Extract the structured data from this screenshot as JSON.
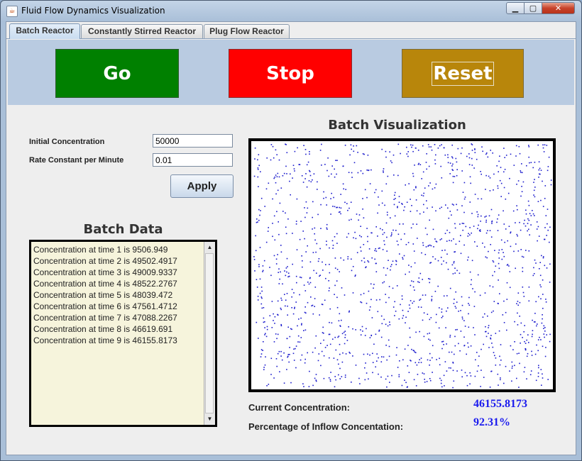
{
  "window": {
    "title": "Fluid Flow Dynamics Visualization",
    "app_icon": "java-coffee-icon",
    "controls": {
      "minimize": "▁",
      "maximize": "▢",
      "close": "✕"
    }
  },
  "tabs": [
    {
      "label": "Batch Reactor",
      "active": true
    },
    {
      "label": "Constantly Stirred Reactor",
      "active": false
    },
    {
      "label": "Plug Flow Reactor",
      "active": false
    }
  ],
  "controls": {
    "go_label": "Go",
    "stop_label": "Stop",
    "reset_label": "Reset",
    "go_color": "#008000",
    "stop_color": "#ff0000",
    "reset_color": "#b8860b"
  },
  "params": {
    "initial_concentration_label": "Initial Concentration",
    "initial_concentration_value": "50000",
    "rate_constant_label": "Rate Constant per Minute",
    "rate_constant_value": "0.01",
    "apply_label": "Apply"
  },
  "batch_data": {
    "title": "Batch Data",
    "lines": [
      "Concentration at time 1 is 9506.949",
      "Concentration at time 2 is 49502.4917",
      "Concentration at time 3 is 49009.9337",
      "Concentration at time 4 is 48522.2767",
      "Concentration at time 5 is 48039.472",
      "Concentration at time 6 is 47561.4712",
      "Concentration at time 7 is 47088.2267",
      "Concentration at time 8 is 46619.691",
      "Concentration at time 9 is 46155.8173"
    ]
  },
  "visualization": {
    "title": "Batch Visualization",
    "particle_color": "#1a1acc",
    "particle_count": 1500
  },
  "stats": {
    "current_concentration_label": "Current Concentration:",
    "current_concentration_value": "46155.8173",
    "percentage_label": "Percentage of Inflow Concentation:",
    "percentage_value": "92.31%",
    "value_color": "#1a1aee"
  }
}
